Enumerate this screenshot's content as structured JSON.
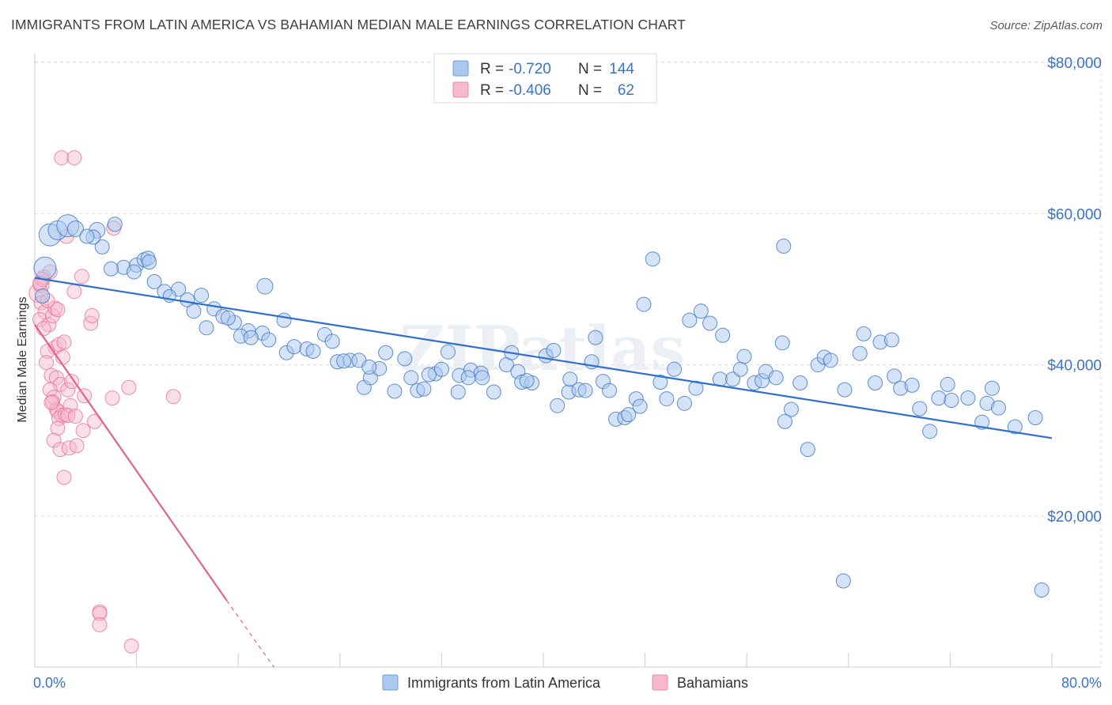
{
  "title": "IMMIGRANTS FROM LATIN AMERICA VS BAHAMIAN MEDIAN MALE EARNINGS CORRELATION CHART",
  "source": "Source: ZipAtlas.com",
  "watermark": "ZIPatlas",
  "colors": {
    "blue": "#3b73c4",
    "blue_fill": "#aac8f0",
    "blue_line": "#2f6fce",
    "pink": "#e8709a",
    "pink_fill": "#f6b9cd",
    "pink_line": "#e0638e",
    "grid": "#e0e0e0",
    "tick_text": "#3b73c4"
  },
  "legend": {
    "rows": [
      {
        "r_label": "R =",
        "r_value": "-0.720",
        "n_label": "N =",
        "n_value": "144"
      },
      {
        "r_label": "R =",
        "r_value": "-0.406",
        "n_label": "N =",
        "n_value": "62"
      }
    ]
  },
  "bottom_legend": [
    "Immigrants from Latin America",
    "Bahamians"
  ],
  "chart_data": {
    "type": "scatter",
    "title": "IMMIGRANTS FROM LATIN AMERICA VS BAHAMIAN MEDIAN MALE EARNINGS CORRELATION CHART",
    "xlabel": "",
    "ylabel": "Median Male Earnings",
    "xlim": [
      0,
      80
    ],
    "ylim": [
      0,
      82000
    ],
    "x_tick_labels": [
      "0.0%",
      "80.0%"
    ],
    "y_ticks": [
      20000,
      40000,
      60000,
      80000
    ],
    "y_tick_labels": [
      "$20,000",
      "$40,000",
      "$60,000",
      "$80,000"
    ],
    "grid": true,
    "legend_position": "top-center",
    "series": [
      {
        "name": "Immigrants from Latin America",
        "R": -0.72,
        "N": 144,
        "trend": {
          "x0": 0,
          "y0": 51500,
          "x1": 80,
          "y1": 30300
        },
        "points": [
          [
            0.8,
            52800,
            14
          ],
          [
            1.2,
            57200,
            14
          ],
          [
            1.8,
            57800,
            12
          ],
          [
            2.6,
            58400,
            14
          ],
          [
            3.2,
            58000,
            10
          ],
          [
            4.9,
            57800,
            10
          ],
          [
            6.3,
            58600,
            9
          ],
          [
            5.3,
            55600,
            9
          ],
          [
            4.6,
            56900,
            9
          ],
          [
            7.0,
            52900,
            9
          ],
          [
            8.0,
            53200,
            9
          ],
          [
            8.6,
            53900,
            9
          ],
          [
            8.9,
            54100,
            9
          ],
          [
            9.4,
            51000,
            9
          ],
          [
            10.2,
            49700,
            9
          ],
          [
            11.3,
            50000,
            9
          ],
          [
            10.6,
            49100,
            8
          ],
          [
            12.0,
            48600,
            9
          ],
          [
            13.1,
            49200,
            9
          ],
          [
            12.5,
            47100,
            9
          ],
          [
            14.1,
            47400,
            9
          ],
          [
            14.8,
            46400,
            9
          ],
          [
            13.5,
            44900,
            9
          ],
          [
            15.7,
            45600,
            9
          ],
          [
            16.8,
            44500,
            9
          ],
          [
            16.2,
            43800,
            9
          ],
          [
            17.9,
            44200,
            9
          ],
          [
            18.4,
            43300,
            9
          ],
          [
            18.1,
            50400,
            10
          ],
          [
            19.6,
            45900,
            9
          ],
          [
            19.8,
            41600,
            9
          ],
          [
            20.4,
            42400,
            9
          ],
          [
            21.4,
            42100,
            9
          ],
          [
            21.9,
            41800,
            9
          ],
          [
            22.8,
            44000,
            9
          ],
          [
            23.4,
            43100,
            9
          ],
          [
            23.8,
            40400,
            9
          ],
          [
            24.8,
            40600,
            9
          ],
          [
            25.5,
            40600,
            9
          ],
          [
            25.9,
            37000,
            9
          ],
          [
            26.4,
            38300,
            9
          ],
          [
            27.1,
            39500,
            9
          ],
          [
            27.6,
            41600,
            9
          ],
          [
            28.3,
            36500,
            9
          ],
          [
            29.1,
            40800,
            9
          ],
          [
            29.6,
            38300,
            9
          ],
          [
            30.1,
            36600,
            9
          ],
          [
            30.6,
            36800,
            9
          ],
          [
            31.5,
            38800,
            9
          ],
          [
            32.0,
            39400,
            9
          ],
          [
            32.5,
            41700,
            9
          ],
          [
            33.4,
            38600,
            9
          ],
          [
            34.3,
            39300,
            9
          ],
          [
            34.1,
            38300,
            9
          ],
          [
            35.1,
            38900,
            9
          ],
          [
            35.2,
            38300,
            9
          ],
          [
            36.1,
            36400,
            9
          ],
          [
            37.1,
            40000,
            9
          ],
          [
            37.5,
            41600,
            9
          ],
          [
            38.0,
            39100,
            9
          ],
          [
            38.3,
            37700,
            9
          ],
          [
            39.1,
            37600,
            9
          ],
          [
            40.2,
            41200,
            9
          ],
          [
            40.8,
            41900,
            9
          ],
          [
            41.1,
            34600,
            9
          ],
          [
            42.0,
            36400,
            9
          ],
          [
            42.1,
            38100,
            9
          ],
          [
            42.8,
            36700,
            9
          ],
          [
            43.3,
            36600,
            9
          ],
          [
            43.8,
            40400,
            9
          ],
          [
            44.1,
            43600,
            9
          ],
          [
            44.7,
            37800,
            9
          ],
          [
            45.2,
            36600,
            9
          ],
          [
            45.7,
            32800,
            9
          ],
          [
            46.4,
            33000,
            9
          ],
          [
            46.7,
            33400,
            9
          ],
          [
            47.3,
            35500,
            9
          ],
          [
            47.6,
            34500,
            9
          ],
          [
            47.9,
            48000,
            9
          ],
          [
            48.6,
            54000,
            9
          ],
          [
            49.2,
            37700,
            9
          ],
          [
            49.7,
            35500,
            9
          ],
          [
            50.3,
            39400,
            9
          ],
          [
            51.1,
            34900,
            9
          ],
          [
            51.5,
            45900,
            9
          ],
          [
            52.0,
            36900,
            9
          ],
          [
            52.4,
            47100,
            9
          ],
          [
            53.1,
            45500,
            9
          ],
          [
            53.9,
            38100,
            9
          ],
          [
            54.1,
            43900,
            9
          ],
          [
            54.9,
            38100,
            9
          ],
          [
            55.5,
            39400,
            9
          ],
          [
            55.8,
            41100,
            9
          ],
          [
            56.6,
            37600,
            9
          ],
          [
            57.2,
            37900,
            9
          ],
          [
            57.5,
            39100,
            9
          ],
          [
            58.3,
            38300,
            9
          ],
          [
            58.8,
            42900,
            9
          ],
          [
            59.5,
            34100,
            9
          ],
          [
            60.2,
            37600,
            9
          ],
          [
            60.8,
            28800,
            9
          ],
          [
            59.0,
            32500,
            9
          ],
          [
            58.9,
            55700,
            9
          ],
          [
            61.6,
            40000,
            9
          ],
          [
            62.1,
            41000,
            9
          ],
          [
            62.6,
            40600,
            9
          ],
          [
            63.7,
            36700,
            9
          ],
          [
            64.9,
            41500,
            9
          ],
          [
            65.2,
            44100,
            9
          ],
          [
            66.1,
            37600,
            9
          ],
          [
            66.5,
            43000,
            9
          ],
          [
            67.4,
            43300,
            9
          ],
          [
            67.6,
            38500,
            9
          ],
          [
            68.1,
            36900,
            9
          ],
          [
            69.0,
            37300,
            9
          ],
          [
            69.6,
            34200,
            9
          ],
          [
            70.4,
            31200,
            9
          ],
          [
            71.1,
            35600,
            9
          ],
          [
            71.8,
            37400,
            9
          ],
          [
            72.1,
            35300,
            9
          ],
          [
            73.4,
            35600,
            9
          ],
          [
            74.5,
            32400,
            9
          ],
          [
            74.9,
            34900,
            9
          ],
          [
            75.3,
            36900,
            9
          ],
          [
            75.8,
            34300,
            9
          ],
          [
            77.1,
            31800,
            9
          ],
          [
            78.7,
            33000,
            9
          ],
          [
            63.6,
            11400,
            9
          ],
          [
            79.2,
            10200,
            9
          ],
          [
            4.1,
            57000,
            9
          ],
          [
            6.0,
            52700,
            9
          ],
          [
            9.0,
            53600,
            9
          ],
          [
            15.2,
            46200,
            9
          ],
          [
            17.0,
            43600,
            9
          ],
          [
            24.3,
            40500,
            9
          ],
          [
            26.3,
            39700,
            9
          ],
          [
            31.0,
            38700,
            9
          ],
          [
            33.3,
            36400,
            9
          ],
          [
            38.7,
            37900,
            9
          ],
          [
            0.6,
            49100,
            9
          ],
          [
            7.8,
            52300,
            9
          ]
        ]
      },
      {
        "name": "Bahamians",
        "R": -0.406,
        "N": 62,
        "trend_solid": {
          "x0": 0,
          "y0": 45300,
          "x1": 15.1,
          "y1": 8800
        },
        "trend_dashed": {
          "x0": 15.1,
          "y0": 8800,
          "x1": 18.8,
          "y1": 0
        },
        "points": [
          [
            0.3,
            49500,
            12
          ],
          [
            0.5,
            50600,
            10
          ],
          [
            0.7,
            51600,
            9
          ],
          [
            0.5,
            48200,
            9
          ],
          [
            0.8,
            47000,
            9
          ],
          [
            0.4,
            46000,
            9
          ],
          [
            1.1,
            45300,
            9
          ],
          [
            1.4,
            46500,
            9
          ],
          [
            1.6,
            42300,
            9
          ],
          [
            1.9,
            42700,
            9
          ],
          [
            2.3,
            43000,
            9
          ],
          [
            2.2,
            41000,
            9
          ],
          [
            1.0,
            41800,
            9
          ],
          [
            0.9,
            40300,
            9
          ],
          [
            1.3,
            38600,
            9
          ],
          [
            1.7,
            38300,
            9
          ],
          [
            2.0,
            37400,
            9
          ],
          [
            1.2,
            36700,
            9
          ],
          [
            1.5,
            35700,
            9
          ],
          [
            2.6,
            36700,
            9
          ],
          [
            1.4,
            35100,
            9
          ],
          [
            1.7,
            34100,
            9
          ],
          [
            1.8,
            33800,
            9
          ],
          [
            2.1,
            33300,
            9
          ],
          [
            1.9,
            32900,
            9
          ],
          [
            2.4,
            33400,
            9
          ],
          [
            2.8,
            34600,
            9
          ],
          [
            1.8,
            31600,
            9
          ],
          [
            1.5,
            30000,
            9
          ],
          [
            2.0,
            28800,
            9
          ],
          [
            2.7,
            29000,
            9
          ],
          [
            3.3,
            29300,
            9
          ],
          [
            3.8,
            31300,
            9
          ],
          [
            4.7,
            32500,
            9
          ],
          [
            3.9,
            35900,
            9
          ],
          [
            4.4,
            45500,
            9
          ],
          [
            4.5,
            46500,
            9
          ],
          [
            3.7,
            51700,
            9
          ],
          [
            3.1,
            49700,
            9
          ],
          [
            1.6,
            47500,
            9
          ],
          [
            1.8,
            47300,
            9
          ],
          [
            6.2,
            58100,
            9
          ],
          [
            6.1,
            35600,
            9
          ],
          [
            7.4,
            37000,
            9
          ],
          [
            10.9,
            35800,
            9
          ],
          [
            2.1,
            67400,
            9
          ],
          [
            3.1,
            67400,
            9
          ],
          [
            2.5,
            57000,
            9
          ],
          [
            1.2,
            52300,
            9
          ],
          [
            0.6,
            51300,
            9
          ],
          [
            1.0,
            48500,
            9
          ],
          [
            2.3,
            25100,
            9
          ],
          [
            5.1,
            7300,
            9
          ],
          [
            5.1,
            7100,
            9
          ],
          [
            5.1,
            5600,
            9
          ],
          [
            7.6,
            2800,
            9
          ],
          [
            1.3,
            35000,
            9
          ],
          [
            2.6,
            33300,
            9
          ],
          [
            0.4,
            50800,
            9
          ],
          [
            0.7,
            44800,
            9
          ],
          [
            2.9,
            37800,
            9
          ],
          [
            3.2,
            33200,
            9
          ]
        ]
      }
    ]
  }
}
